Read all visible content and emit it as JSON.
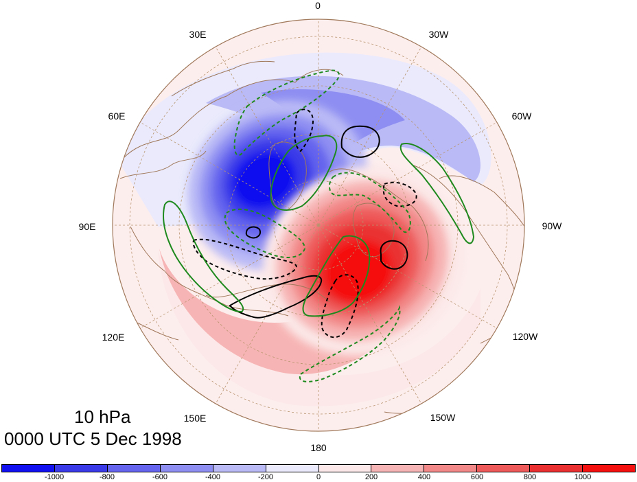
{
  "title": {
    "level": "10 hPa",
    "datetime": "0000 UTC 5 Dec 1998"
  },
  "longitude_labels": [
    "0",
    "30W",
    "60W",
    "90W",
    "120W",
    "150W",
    "180",
    "150E",
    "120E",
    "90E",
    "60E",
    "30E"
  ],
  "colorbar": {
    "labels": [
      "-1000",
      "-800",
      "-600",
      "-400",
      "-200",
      "0",
      "200",
      "400",
      "600",
      "800",
      "1000"
    ],
    "colors": [
      "#1010f0",
      "#3a3ae8",
      "#6464ee",
      "#8e8ef2",
      "#babaf6",
      "#eaeafc",
      "#fce8e8",
      "#f7b4b4",
      "#f28888",
      "#ee5a5a",
      "#ea3030",
      "#f51010"
    ]
  },
  "map": {
    "projection": "north-polar-stereographic",
    "shading_field": "geopotential height anomaly",
    "contour_colors": {
      "positive": "#000000",
      "tendency": "#228b22",
      "coast": "#a0785a",
      "grid": "#b8956f"
    }
  }
}
